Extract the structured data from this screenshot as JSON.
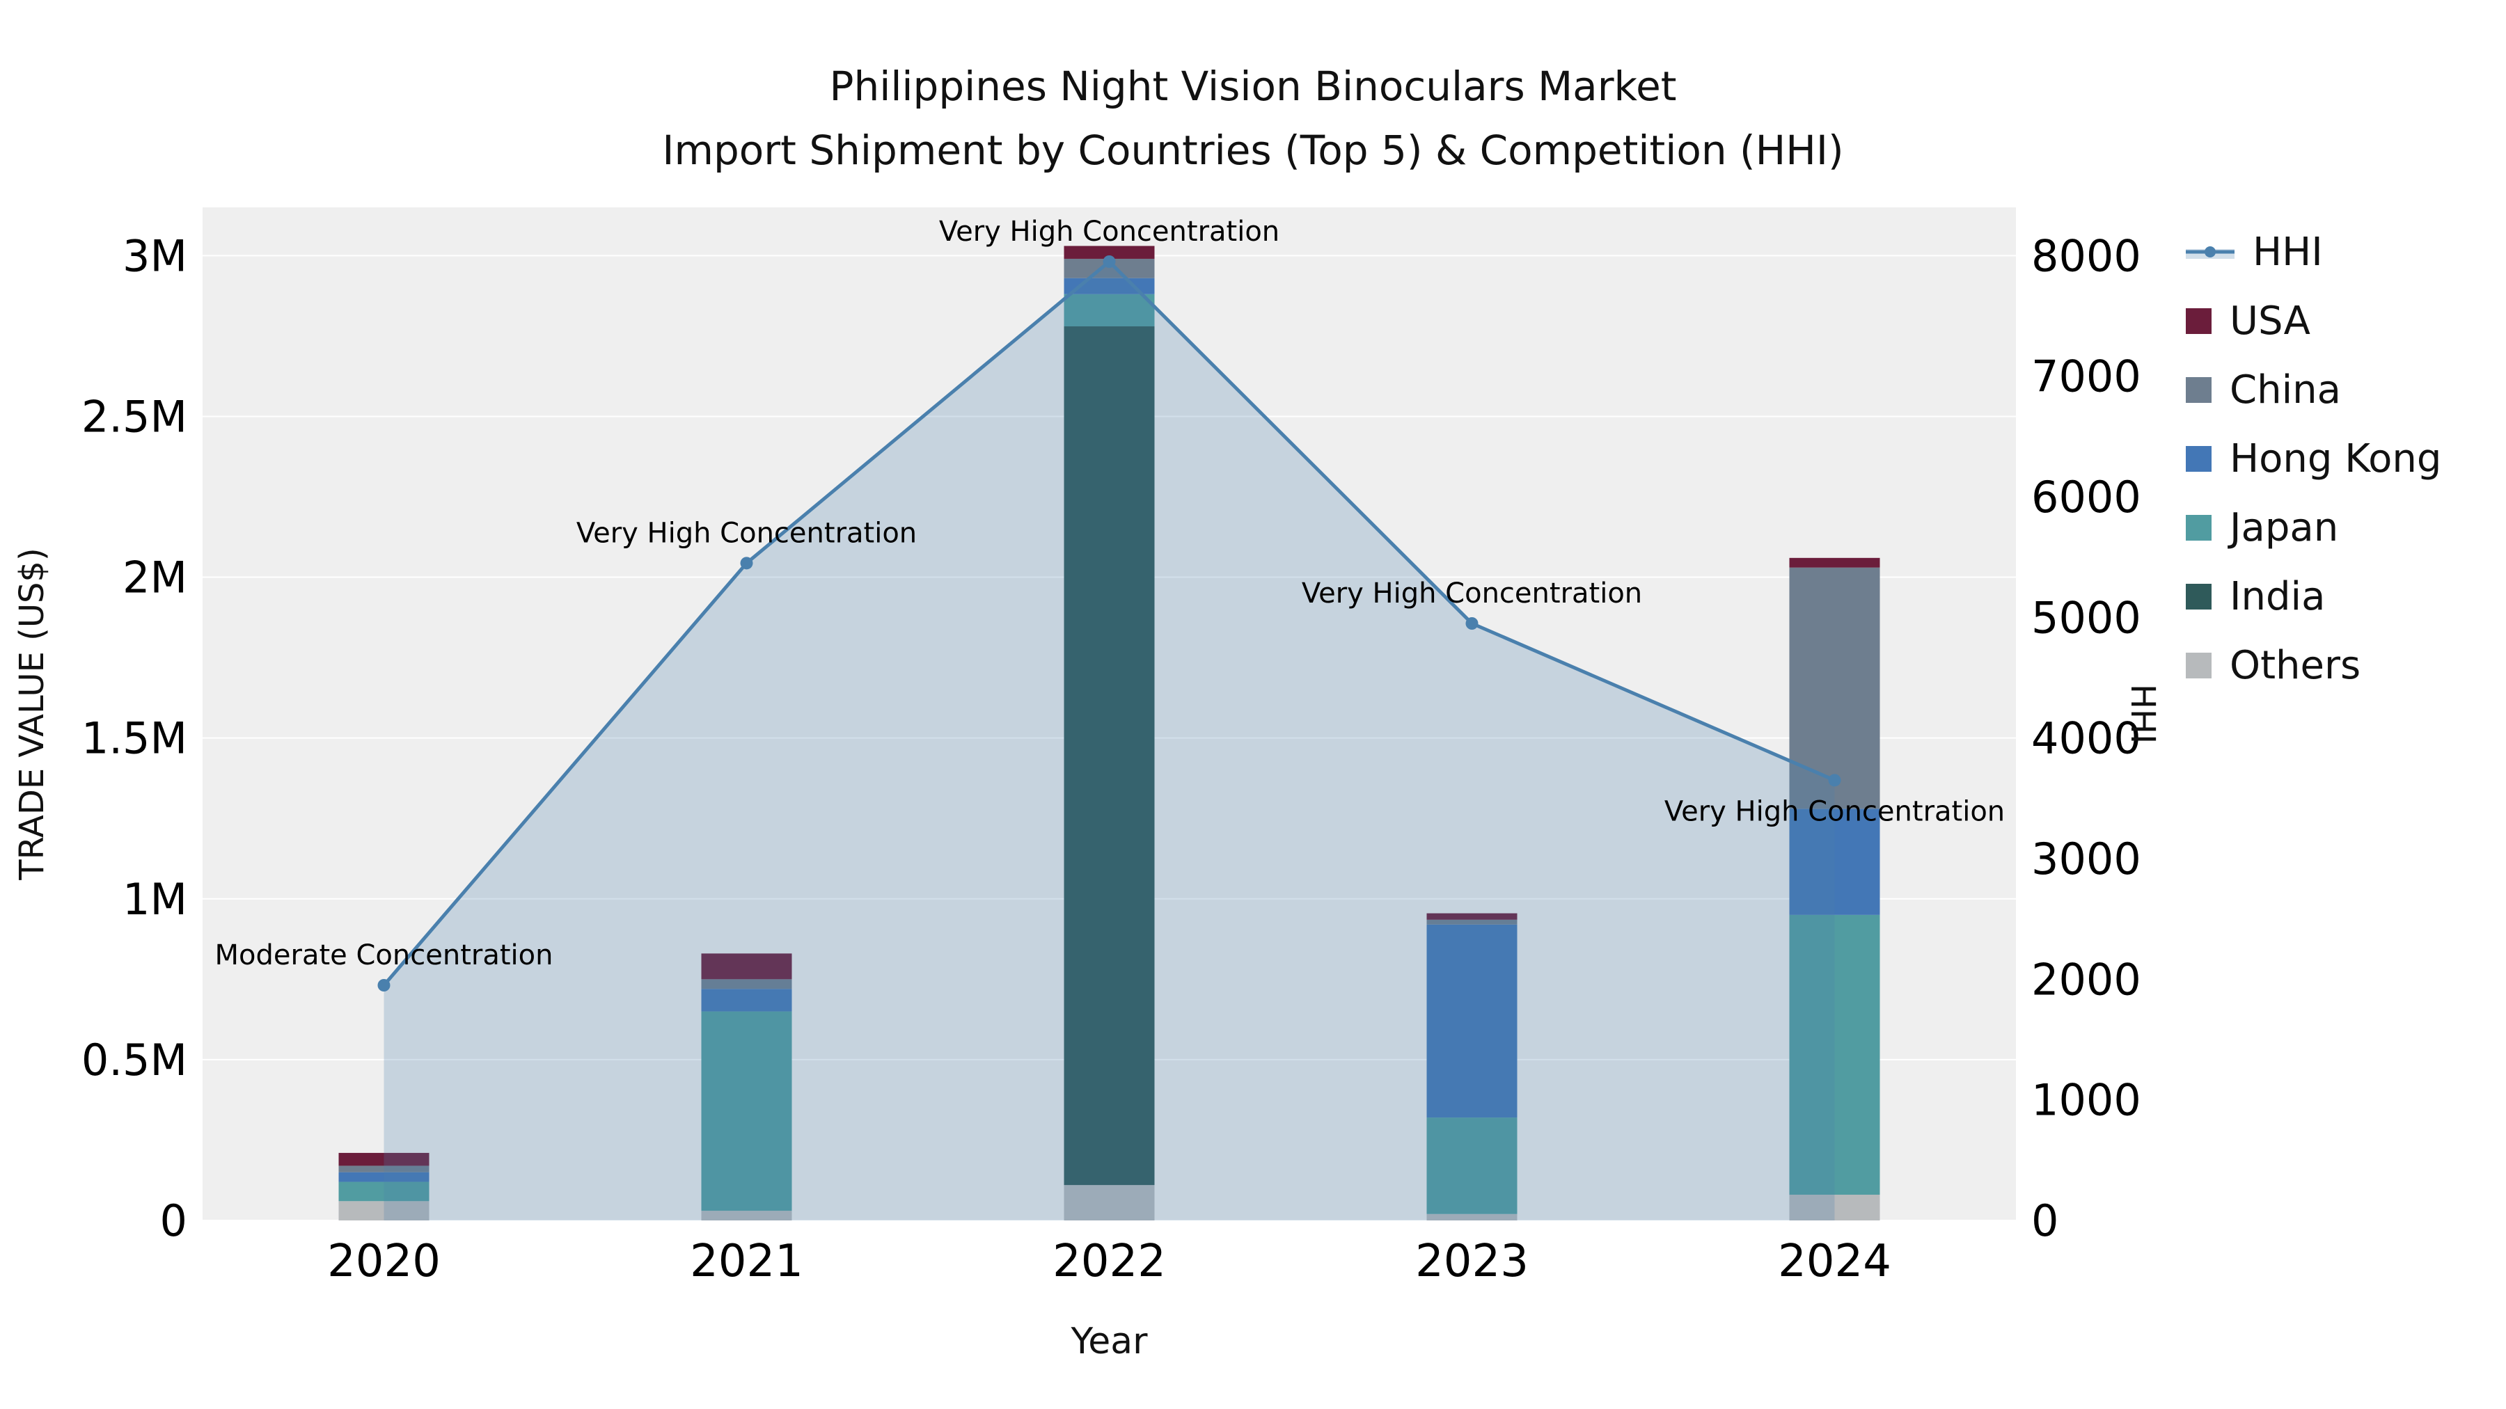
{
  "chart_data": {
    "type": "combo-stacked-bar-line",
    "title": "Philippines Night Vision Binoculars Market",
    "subtitle": "Import Shipment by Countries (Top 5) & Competition (HHI)",
    "xlabel": "Year",
    "ylabel_left": "TRADE VALUE (US$)",
    "ylabel_right": "HHI",
    "categories": [
      "2020",
      "2021",
      "2022",
      "2023",
      "2024"
    ],
    "y_left": {
      "tick_values": [
        0,
        500000,
        1000000,
        1500000,
        2000000,
        2500000,
        3000000
      ],
      "tick_labels": [
        "0",
        "0.5M",
        "1M",
        "1.5M",
        "2M",
        "2.5M",
        "3M"
      ],
      "range": [
        0,
        3150000
      ]
    },
    "y_right": {
      "tick_values": [
        0,
        1000,
        2000,
        3000,
        4000,
        5000,
        6000,
        7000,
        8000
      ],
      "tick_labels": [
        "0",
        "1000",
        "2000",
        "3000",
        "4000",
        "5000",
        "6000",
        "7000",
        "8000"
      ],
      "range": [
        0,
        8400
      ]
    },
    "plot_bg_color": "#efefef",
    "grid_color": "#ffffff",
    "stack_order": [
      "Others",
      "India",
      "Japan",
      "Hong Kong",
      "China",
      "USA"
    ],
    "series": [
      {
        "name": "USA",
        "color": "#6b1d3b",
        "values": [
          40000,
          80000,
          40000,
          20000,
          30000
        ]
      },
      {
        "name": "China",
        "color": "#6e7e8f",
        "values": [
          20000,
          30000,
          60000,
          15000,
          750000
        ]
      },
      {
        "name": "Hong Kong",
        "color": "#4377b6",
        "values": [
          30000,
          70000,
          50000,
          600000,
          330000
        ]
      },
      {
        "name": "Japan",
        "color": "#519ca1",
        "values": [
          60000,
          620000,
          100000,
          300000,
          870000
        ]
      },
      {
        "name": "India",
        "color": "#2f5a5a",
        "values": [
          0,
          0,
          2670000,
          0,
          0
        ]
      },
      {
        "name": "Others",
        "color": "#b7babc",
        "values": [
          60000,
          30000,
          110000,
          20000,
          80000
        ]
      }
    ],
    "hhi": {
      "name": "HHI",
      "color": "#4a80ad",
      "fill_color": "rgba(74,128,173,0.25)",
      "values": [
        1950,
        5450,
        7950,
        4950,
        3650
      ]
    },
    "annotations": [
      {
        "category": "2020",
        "text": "Moderate Concentration",
        "placement": "above"
      },
      {
        "category": "2021",
        "text": "Very High Concentration",
        "placement": "above"
      },
      {
        "category": "2022",
        "text": "Very High Concentration",
        "placement": "above"
      },
      {
        "category": "2023",
        "text": "Very High Concentration",
        "placement": "above"
      },
      {
        "category": "2024",
        "text": "Very High Concentration",
        "placement": "below"
      }
    ],
    "legend": [
      {
        "label": "HHI",
        "type": "line",
        "color": "#4a80ad"
      },
      {
        "label": "USA",
        "type": "square",
        "color": "#6b1d3b"
      },
      {
        "label": "China",
        "type": "square",
        "color": "#6e7e8f"
      },
      {
        "label": "Hong Kong",
        "type": "square",
        "color": "#4377b6"
      },
      {
        "label": "Japan",
        "type": "square",
        "color": "#519ca1"
      },
      {
        "label": "India",
        "type": "square",
        "color": "#2f5a5a"
      },
      {
        "label": "Others",
        "type": "square",
        "color": "#b7babc"
      }
    ]
  }
}
